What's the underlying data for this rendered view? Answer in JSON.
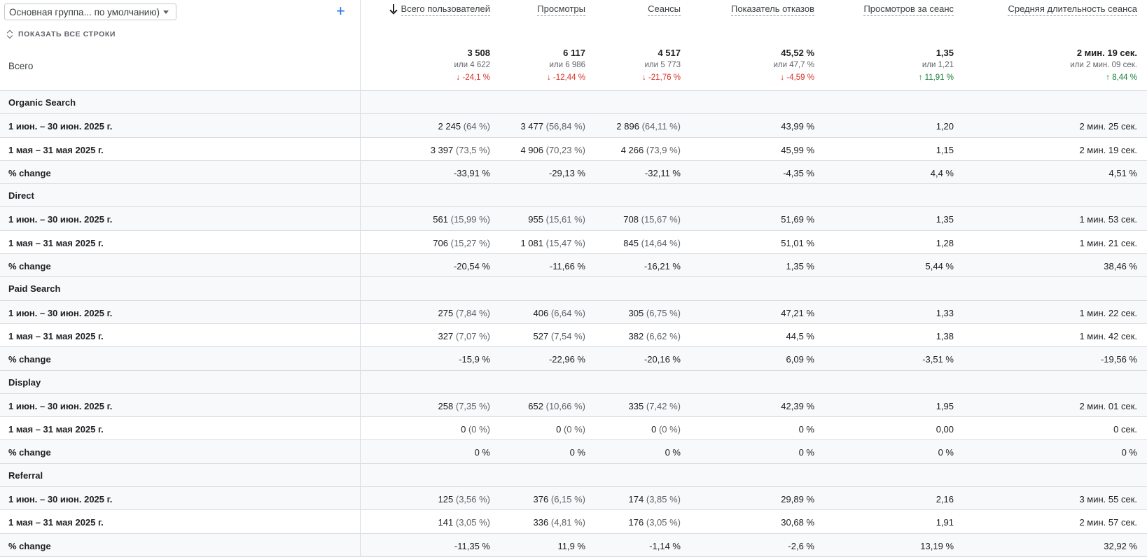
{
  "controls": {
    "dimension_select": "Основная группа... по умолчанию)",
    "show_all_rows": "ПОКАЗАТЬ ВСЕ СТРОКИ",
    "total_label": "Всего"
  },
  "columns": [
    {
      "label": "Всего пользователей",
      "sorted": true
    },
    {
      "label": "Просмотры"
    },
    {
      "label": "Сеансы"
    },
    {
      "label": "Показатель отказов"
    },
    {
      "label": "Просмотров за сеанс"
    },
    {
      "label": "Средняя длительность сеанса"
    }
  ],
  "totals": [
    {
      "value": "3 508",
      "or": "или 4 622",
      "delta": "↓ -24,1 %",
      "dir": "down"
    },
    {
      "value": "6 117",
      "or": "или 6 986",
      "delta": "↓ -12,44 %",
      "dir": "down"
    },
    {
      "value": "4 517",
      "or": "или 5 773",
      "delta": "↓ -21,76 %",
      "dir": "down"
    },
    {
      "value": "45,52 %",
      "or": "или 47,7 %",
      "delta": "↓ -4,59 %",
      "dir": "down"
    },
    {
      "value": "1,35",
      "or": "или 1,21",
      "delta": "↑ 11,91 %",
      "dir": "up"
    },
    {
      "value": "2 мин. 19 сек.",
      "or": "или 2 мин. 09 сек.",
      "delta": "↑ 8,44 %",
      "dir": "up"
    }
  ],
  "groups": [
    {
      "name": "Organic Search",
      "rows": [
        {
          "label": "1 июн. – 30 июн. 2025 г.",
          "cells": [
            [
              "2 245",
              "(64 %)"
            ],
            [
              "3 477",
              "(56,84 %)"
            ],
            [
              "2 896",
              "(64,11 %)"
            ],
            [
              "43,99 %"
            ],
            [
              "1,20"
            ],
            [
              "2 мин. 25 сек."
            ]
          ]
        },
        {
          "label": "1 мая – 31 мая 2025 г.",
          "cells": [
            [
              "3 397",
              "(73,5 %)"
            ],
            [
              "4 906",
              "(70,23 %)"
            ],
            [
              "4 266",
              "(73,9 %)"
            ],
            [
              "45,99 %"
            ],
            [
              "1,15"
            ],
            [
              "2 мин. 19 сек."
            ]
          ]
        },
        {
          "label": "% change",
          "cells": [
            [
              "-33,91 %"
            ],
            [
              "-29,13 %"
            ],
            [
              "-32,11 %"
            ],
            [
              "-4,35 %"
            ],
            [
              "4,4 %"
            ],
            [
              "4,51 %"
            ]
          ]
        }
      ]
    },
    {
      "name": "Direct",
      "rows": [
        {
          "label": "1 июн. – 30 июн. 2025 г.",
          "cells": [
            [
              "561",
              "(15,99 %)"
            ],
            [
              "955",
              "(15,61 %)"
            ],
            [
              "708",
              "(15,67 %)"
            ],
            [
              "51,69 %"
            ],
            [
              "1,35"
            ],
            [
              "1 мин. 53 сек."
            ]
          ]
        },
        {
          "label": "1 мая – 31 мая 2025 г.",
          "cells": [
            [
              "706",
              "(15,27 %)"
            ],
            [
              "1 081",
              "(15,47 %)"
            ],
            [
              "845",
              "(14,64 %)"
            ],
            [
              "51,01 %"
            ],
            [
              "1,28"
            ],
            [
              "1 мин. 21 сек."
            ]
          ]
        },
        {
          "label": "% change",
          "cells": [
            [
              "-20,54 %"
            ],
            [
              "-11,66 %"
            ],
            [
              "-16,21 %"
            ],
            [
              "1,35 %"
            ],
            [
              "5,44 %"
            ],
            [
              "38,46 %"
            ]
          ]
        }
      ]
    },
    {
      "name": "Paid Search",
      "rows": [
        {
          "label": "1 июн. – 30 июн. 2025 г.",
          "cells": [
            [
              "275",
              "(7,84 %)"
            ],
            [
              "406",
              "(6,64 %)"
            ],
            [
              "305",
              "(6,75 %)"
            ],
            [
              "47,21 %"
            ],
            [
              "1,33"
            ],
            [
              "1 мин. 22 сек."
            ]
          ]
        },
        {
          "label": "1 мая – 31 мая 2025 г.",
          "cells": [
            [
              "327",
              "(7,07 %)"
            ],
            [
              "527",
              "(7,54 %)"
            ],
            [
              "382",
              "(6,62 %)"
            ],
            [
              "44,5 %"
            ],
            [
              "1,38"
            ],
            [
              "1 мин. 42 сек."
            ]
          ]
        },
        {
          "label": "% change",
          "cells": [
            [
              "-15,9 %"
            ],
            [
              "-22,96 %"
            ],
            [
              "-20,16 %"
            ],
            [
              "6,09 %"
            ],
            [
              "-3,51 %"
            ],
            [
              "-19,56 %"
            ]
          ]
        }
      ]
    },
    {
      "name": "Display",
      "rows": [
        {
          "label": "1 июн. – 30 июн. 2025 г.",
          "cells": [
            [
              "258",
              "(7,35 %)"
            ],
            [
              "652",
              "(10,66 %)"
            ],
            [
              "335",
              "(7,42 %)"
            ],
            [
              "42,39 %"
            ],
            [
              "1,95"
            ],
            [
              "2 мин. 01 сек."
            ]
          ]
        },
        {
          "label": "1 мая – 31 мая 2025 г.",
          "cells": [
            [
              "0",
              "(0 %)"
            ],
            [
              "0",
              "(0 %)"
            ],
            [
              "0",
              "(0 %)"
            ],
            [
              "0 %"
            ],
            [
              "0,00"
            ],
            [
              "0 сек."
            ]
          ]
        },
        {
          "label": "% change",
          "cells": [
            [
              "0 %"
            ],
            [
              "0 %"
            ],
            [
              "0 %"
            ],
            [
              "0 %"
            ],
            [
              "0 %"
            ],
            [
              "0 %"
            ]
          ]
        }
      ]
    },
    {
      "name": "Referral",
      "rows": [
        {
          "label": "1 июн. – 30 июн. 2025 г.",
          "cells": [
            [
              "125",
              "(3,56 %)"
            ],
            [
              "376",
              "(6,15 %)"
            ],
            [
              "174",
              "(3,85 %)"
            ],
            [
              "29,89 %"
            ],
            [
              "2,16"
            ],
            [
              "3 мин. 55 сек."
            ]
          ]
        },
        {
          "label": "1 мая – 31 мая 2025 г.",
          "cells": [
            [
              "141",
              "(3,05 %)"
            ],
            [
              "336",
              "(4,81 %)"
            ],
            [
              "176",
              "(3,05 %)"
            ],
            [
              "30,68 %"
            ],
            [
              "1,91"
            ],
            [
              "2 мин. 57 сек."
            ]
          ]
        },
        {
          "label": "% change",
          "cells": [
            [
              "-11,35 %"
            ],
            [
              "11,9 %"
            ],
            [
              "-1,14 %"
            ],
            [
              "-2,6 %"
            ],
            [
              "13,19 %"
            ],
            [
              "32,92 %"
            ]
          ]
        }
      ]
    }
  ]
}
